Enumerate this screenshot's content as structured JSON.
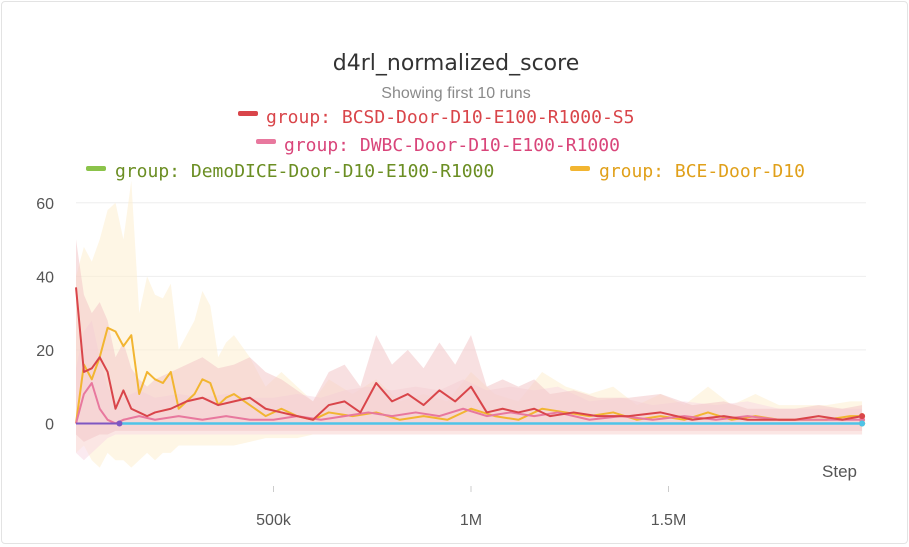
{
  "chart_data": {
    "type": "line",
    "title": "d4rl_normalized_score",
    "subtitle": "Showing first 10 runs",
    "xlabel": "Step",
    "ylabel": "",
    "xlim": [
      0,
      2000000
    ],
    "ylim": [
      -17,
      67
    ],
    "x_ticks": [
      {
        "value": 500000,
        "label": "500k"
      },
      {
        "value": 1000000,
        "label": "1M"
      },
      {
        "value": 1500000,
        "label": "1.5M"
      }
    ],
    "y_ticks": [
      {
        "value": 0,
        "label": "0"
      },
      {
        "value": 20,
        "label": "20"
      },
      {
        "value": 40,
        "label": "40"
      },
      {
        "value": 60,
        "label": "60"
      }
    ],
    "grid": true,
    "legend_position": "top",
    "series": [
      {
        "name": "group: BCSD-Door-D10-E100-R1000-S5",
        "color": "#d9454a",
        "band_color": "#f3c7c9",
        "x": [
          0,
          20000,
          40000,
          60000,
          80000,
          100000,
          120000,
          140000,
          160000,
          180000,
          200000,
          240000,
          280000,
          320000,
          360000,
          400000,
          440000,
          480000,
          520000,
          560000,
          600000,
          640000,
          680000,
          720000,
          760000,
          800000,
          840000,
          880000,
          920000,
          960000,
          1000000,
          1040000,
          1080000,
          1120000,
          1160000,
          1200000,
          1260000,
          1320000,
          1400000,
          1480000,
          1560000,
          1640000,
          1700000,
          1760000,
          1820000,
          1880000,
          1940000,
          1990000
        ],
        "y": [
          37,
          14,
          15,
          18,
          14,
          4,
          9,
          4,
          3,
          2,
          3,
          4,
          6,
          7,
          5,
          6,
          7,
          4,
          3,
          2,
          1,
          5,
          6,
          3,
          11,
          6,
          8,
          5,
          9,
          6,
          10,
          3,
          4,
          3,
          4,
          2,
          3,
          2,
          2,
          3,
          1,
          2,
          1,
          1,
          1,
          2,
          1,
          2
        ],
        "band": [
          [
            -3,
            50
          ],
          [
            -5,
            35
          ],
          [
            -4,
            30
          ],
          [
            -3,
            33
          ],
          [
            -3,
            28
          ],
          [
            -2,
            18
          ],
          [
            -2,
            22
          ],
          [
            -2,
            15
          ],
          [
            -2,
            12
          ],
          [
            -2,
            10
          ],
          [
            -2,
            12
          ],
          [
            -2,
            14
          ],
          [
            -2,
            16
          ],
          [
            -2,
            18
          ],
          [
            -2,
            15
          ],
          [
            -2,
            16
          ],
          [
            -2,
            18
          ],
          [
            -2,
            14
          ],
          [
            -2,
            12
          ],
          [
            -2,
            9
          ],
          [
            -2,
            6
          ],
          [
            -2,
            14
          ],
          [
            -2,
            16
          ],
          [
            -2,
            10
          ],
          [
            -2,
            24
          ],
          [
            -2,
            16
          ],
          [
            -2,
            20
          ],
          [
            -2,
            15
          ],
          [
            -2,
            22
          ],
          [
            -2,
            16
          ],
          [
            -2,
            24
          ],
          [
            -2,
            10
          ],
          [
            -2,
            12
          ],
          [
            -2,
            10
          ],
          [
            -2,
            12
          ],
          [
            -2,
            8
          ],
          [
            -2,
            9
          ],
          [
            -2,
            7
          ],
          [
            -2,
            7
          ],
          [
            -2,
            8
          ],
          [
            -2,
            5
          ],
          [
            -2,
            6
          ],
          [
            -2,
            4
          ],
          [
            -2,
            4
          ],
          [
            -2,
            4
          ],
          [
            -2,
            5
          ],
          [
            -2,
            4
          ],
          [
            -2,
            5
          ]
        ]
      },
      {
        "name": "group: DWBC-Door-D10-E100-R1000",
        "color": "#e8789e",
        "band_color": "#f8d9e3",
        "x": [
          0,
          20000,
          40000,
          60000,
          80000,
          100000,
          120000,
          160000,
          200000,
          260000,
          320000,
          380000,
          440000,
          500000,
          560000,
          620000,
          680000,
          740000,
          800000,
          860000,
          920000,
          980000,
          1040000,
          1100000,
          1160000,
          1220000,
          1300000,
          1380000,
          1460000,
          1540000,
          1620000,
          1700000,
          1780000,
          1860000,
          1940000,
          1990000
        ],
        "y": [
          0,
          8,
          11,
          4,
          1,
          0,
          1,
          2,
          1,
          2,
          1,
          2,
          1,
          1,
          2,
          1,
          2,
          3,
          2,
          3,
          2,
          4,
          2,
          3,
          2,
          3,
          1,
          2,
          1,
          2,
          1,
          2,
          1,
          1,
          1,
          1
        ],
        "band": [
          [
            -8,
            15
          ],
          [
            -10,
            25
          ],
          [
            -8,
            28
          ],
          [
            -6,
            18
          ],
          [
            -4,
            10
          ],
          [
            -3,
            6
          ],
          [
            -3,
            7
          ],
          [
            -3,
            9
          ],
          [
            -3,
            7
          ],
          [
            -3,
            8
          ],
          [
            -3,
            7
          ],
          [
            -3,
            8
          ],
          [
            -3,
            7
          ],
          [
            -3,
            7
          ],
          [
            -3,
            8
          ],
          [
            -3,
            7
          ],
          [
            -3,
            9
          ],
          [
            -3,
            10
          ],
          [
            -3,
            9
          ],
          [
            -3,
            10
          ],
          [
            -3,
            9
          ],
          [
            -3,
            12
          ],
          [
            -3,
            9
          ],
          [
            -3,
            10
          ],
          [
            -3,
            9
          ],
          [
            -3,
            10
          ],
          [
            -3,
            6
          ],
          [
            -3,
            7
          ],
          [
            -3,
            5
          ],
          [
            -3,
            6
          ],
          [
            -3,
            5
          ],
          [
            -3,
            6
          ],
          [
            -3,
            4
          ],
          [
            -3,
            4
          ],
          [
            -3,
            4
          ],
          [
            -3,
            4
          ]
        ]
      },
      {
        "name": "group: DemoDICE-Door-D10-E100-R1000",
        "color": "#8bc34a",
        "band_color": "#dff0cf",
        "x": [
          0,
          100000,
          200000,
          400000,
          600000,
          800000,
          1000000,
          1200000,
          1400000,
          1600000,
          1800000,
          1990000
        ],
        "y": [
          0,
          0,
          0,
          0,
          0,
          0,
          0,
          0,
          0,
          0,
          0,
          0
        ],
        "band": [
          [
            0,
            0
          ],
          [
            0,
            0
          ],
          [
            0,
            0
          ],
          [
            0,
            0
          ],
          [
            0,
            0
          ],
          [
            0,
            0
          ],
          [
            0,
            0
          ],
          [
            0,
            0
          ],
          [
            0,
            0
          ],
          [
            0,
            0
          ],
          [
            0,
            0
          ],
          [
            0,
            0
          ]
        ]
      },
      {
        "name": "group: BCE-Door-D10",
        "color": "#f2b531",
        "band_color": "#fdefcf",
        "x": [
          0,
          20000,
          40000,
          60000,
          80000,
          100000,
          120000,
          140000,
          160000,
          180000,
          200000,
          220000,
          240000,
          260000,
          280000,
          300000,
          320000,
          340000,
          360000,
          380000,
          400000,
          440000,
          480000,
          520000,
          560000,
          600000,
          640000,
          700000,
          760000,
          820000,
          880000,
          940000,
          1000000,
          1060000,
          1120000,
          1180000,
          1240000,
          1300000,
          1360000,
          1420000,
          1480000,
          1540000,
          1600000,
          1660000,
          1720000,
          1780000,
          1840000,
          1900000,
          1960000,
          1990000
        ],
        "y": [
          0,
          16,
          12,
          18,
          26,
          25,
          21,
          24,
          8,
          14,
          12,
          11,
          14,
          4,
          6,
          8,
          12,
          11,
          5,
          7,
          8,
          5,
          2,
          4,
          2,
          1,
          3,
          2,
          3,
          1,
          2,
          1,
          4,
          2,
          1,
          4,
          3,
          2,
          3,
          1,
          2,
          1,
          3,
          1,
          2,
          1,
          1,
          1,
          2,
          2
        ],
        "band": [
          [
            -8,
            40
          ],
          [
            -6,
            48
          ],
          [
            -10,
            44
          ],
          [
            -12,
            50
          ],
          [
            -8,
            58
          ],
          [
            -10,
            60
          ],
          [
            -10,
            50
          ],
          [
            -12,
            66
          ],
          [
            -10,
            30
          ],
          [
            -8,
            40
          ],
          [
            -10,
            35
          ],
          [
            -8,
            34
          ],
          [
            -8,
            38
          ],
          [
            -6,
            20
          ],
          [
            -6,
            24
          ],
          [
            -6,
            28
          ],
          [
            -6,
            36
          ],
          [
            -6,
            32
          ],
          [
            -6,
            18
          ],
          [
            -6,
            22
          ],
          [
            -6,
            24
          ],
          [
            -5,
            18
          ],
          [
            -4,
            10
          ],
          [
            -4,
            14
          ],
          [
            -4,
            10
          ],
          [
            -3,
            6
          ],
          [
            -3,
            12
          ],
          [
            -3,
            8
          ],
          [
            -3,
            12
          ],
          [
            -3,
            6
          ],
          [
            -3,
            8
          ],
          [
            -3,
            6
          ],
          [
            -3,
            14
          ],
          [
            -3,
            8
          ],
          [
            -3,
            6
          ],
          [
            -3,
            14
          ],
          [
            -3,
            10
          ],
          [
            -3,
            8
          ],
          [
            -3,
            10
          ],
          [
            -3,
            5
          ],
          [
            -3,
            8
          ],
          [
            -3,
            5
          ],
          [
            -3,
            10
          ],
          [
            -3,
            5
          ],
          [
            -3,
            8
          ],
          [
            -3,
            5
          ],
          [
            -3,
            5
          ],
          [
            -3,
            5
          ],
          [
            -3,
            6
          ],
          [
            -3,
            6
          ]
        ]
      },
      {
        "name": "",
        "color": "#7e57c2",
        "band_color": "",
        "x": [
          0,
          40000,
          80000,
          110000
        ],
        "y": [
          0,
          0,
          0,
          0
        ],
        "band": []
      },
      {
        "name": "",
        "color": "#4fc3e8",
        "band_color": "",
        "x": [
          110000,
          400000,
          800000,
          1200000,
          1600000,
          1990000
        ],
        "y": [
          0,
          0,
          0,
          0,
          0,
          0
        ],
        "band": []
      }
    ],
    "legend": [
      {
        "label": "group: BCSD-Door-D10-E100-R1000-S5",
        "color": "#d9454a",
        "text_color": "#d9454a"
      },
      {
        "label": "group: DWBC-Door-D10-E100-R1000",
        "color": "#e8789e",
        "text_color": "#d9457a"
      },
      {
        "label": "group: DemoDICE-Door-D10-E100-R1000",
        "color": "#8bc34a",
        "text_color": "#6b8e23"
      },
      {
        "label": "group: BCE-Door-D10",
        "color": "#f2b531",
        "text_color": "#e0a01a"
      }
    ]
  }
}
